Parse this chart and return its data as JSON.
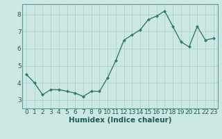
{
  "x": [
    0,
    1,
    2,
    3,
    4,
    5,
    6,
    7,
    8,
    9,
    10,
    11,
    12,
    13,
    14,
    15,
    16,
    17,
    18,
    19,
    20,
    21,
    22,
    23
  ],
  "y": [
    4.5,
    4.0,
    3.3,
    3.6,
    3.6,
    3.5,
    3.4,
    3.2,
    3.5,
    3.5,
    4.3,
    5.3,
    6.5,
    6.8,
    7.1,
    7.7,
    7.9,
    8.2,
    7.3,
    6.4,
    6.1,
    7.3,
    6.5,
    6.6
  ],
  "line_color": "#2e7d6e",
  "marker": "D",
  "marker_size": 2.0,
  "line_width": 1.0,
  "bg_color": "#cce8e4",
  "grid_color": "#aacfca",
  "xlabel": "Humidex (Indice chaleur)",
  "ylim": [
    2.5,
    8.6
  ],
  "xlim": [
    -0.5,
    23.5
  ],
  "yticks": [
    3,
    4,
    5,
    6,
    7,
    8
  ],
  "xticks": [
    0,
    1,
    2,
    3,
    4,
    5,
    6,
    7,
    8,
    9,
    10,
    11,
    12,
    13,
    14,
    15,
    16,
    17,
    18,
    19,
    20,
    21,
    22,
    23
  ],
  "xtick_labels": [
    "0",
    "1",
    "2",
    "3",
    "4",
    "5",
    "6",
    "7",
    "8",
    "9",
    "10",
    "11",
    "12",
    "13",
    "14",
    "15",
    "16",
    "17",
    "18",
    "19",
    "20",
    "21",
    "22",
    "23"
  ],
  "xlabel_fontsize": 7.5,
  "tick_fontsize": 6.5,
  "spine_color": "#5a9a90"
}
